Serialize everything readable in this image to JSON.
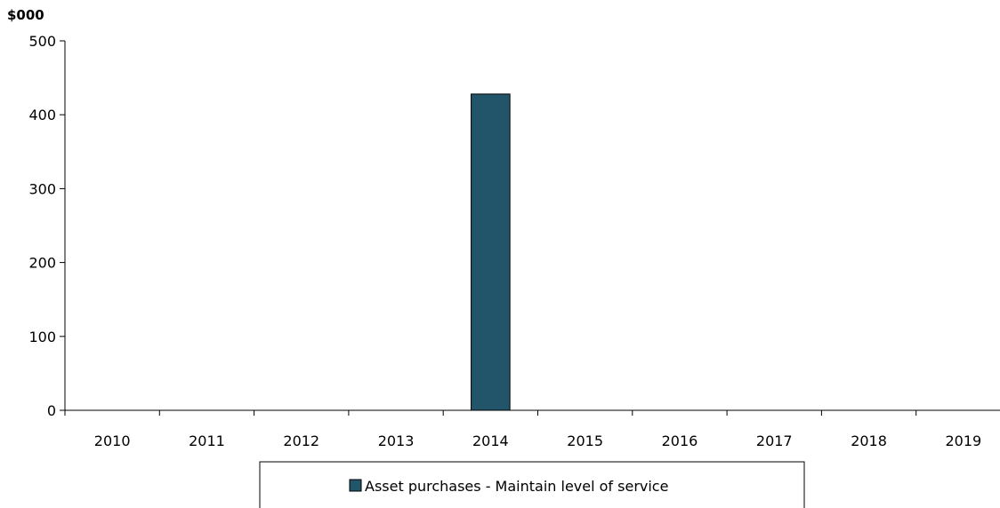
{
  "chart_data": {
    "type": "bar",
    "unit_label": "$000",
    "categories": [
      "2010",
      "2011",
      "2012",
      "2013",
      "2014",
      "2015",
      "2016",
      "2017",
      "2018",
      "2019"
    ],
    "series": [
      {
        "name": "Asset purchases - Maintain level of service",
        "color": "#22546a",
        "values": [
          0,
          0,
          0,
          0,
          428,
          0,
          0,
          0,
          0,
          0
        ]
      }
    ],
    "ylim": [
      0,
      500
    ],
    "yticks": [
      0,
      100,
      200,
      300,
      400,
      500
    ],
    "grid": false,
    "legend_position": "bottom"
  }
}
